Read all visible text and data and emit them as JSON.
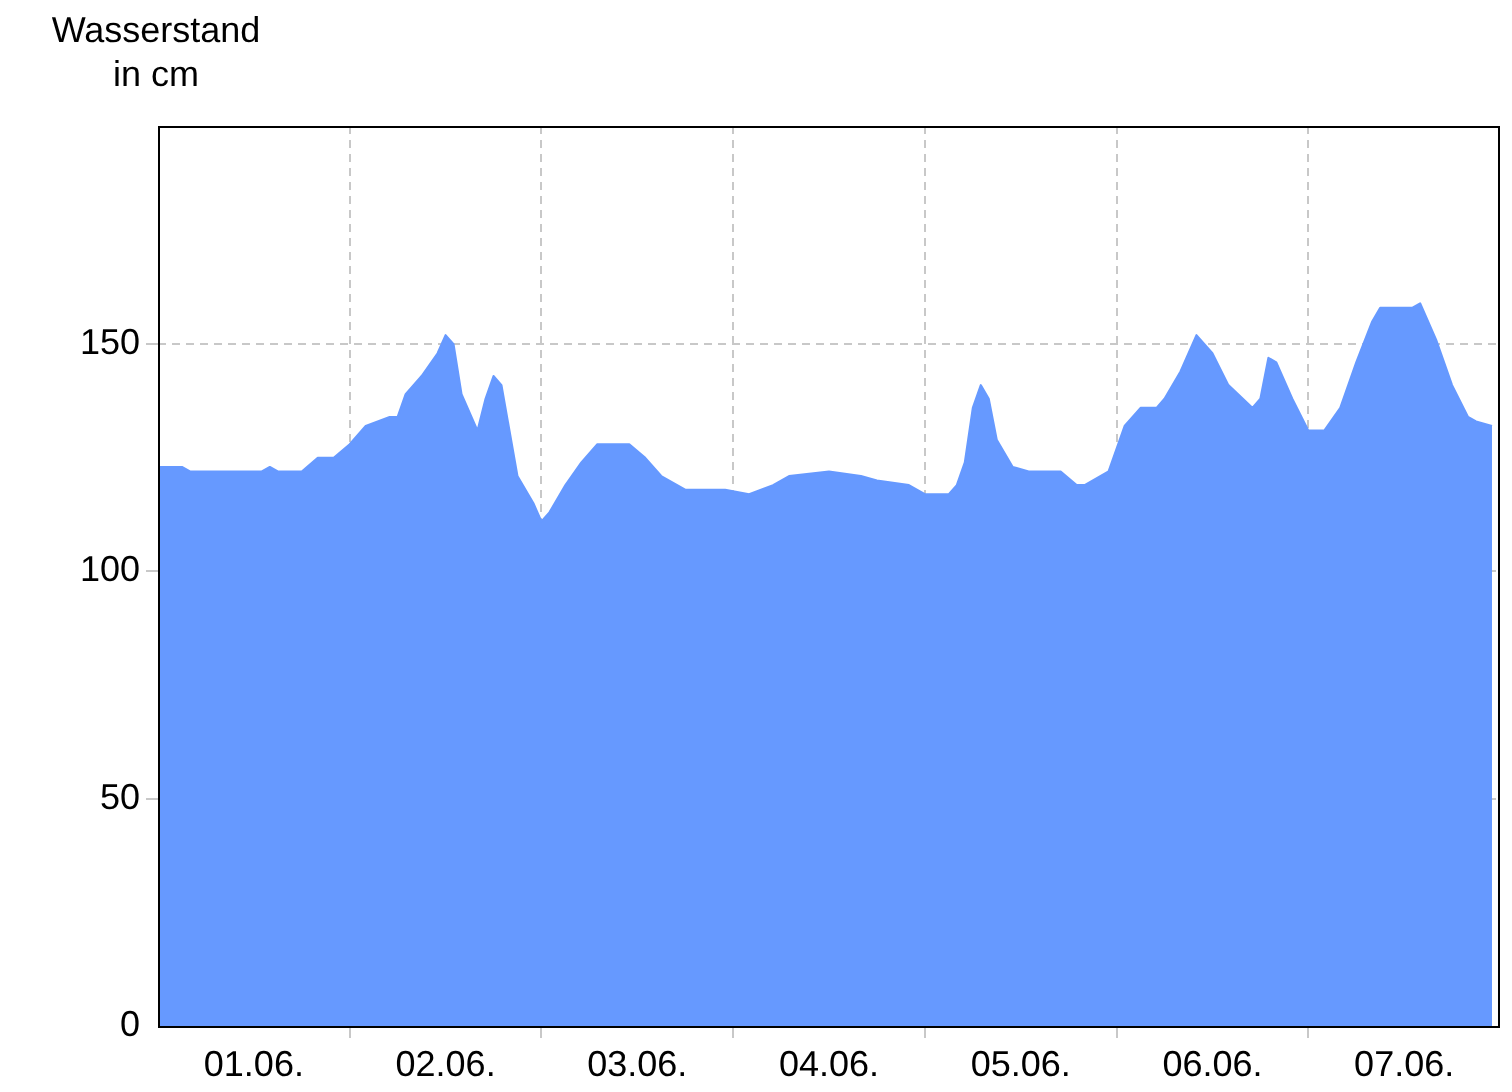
{
  "chart_data": {
    "type": "area",
    "ylabel": "Wasserstand in cm",
    "color": "#6699ff",
    "x": [
      "--06-01T00:00",
      "--06-01T03:00",
      "--06-01T04:00",
      "--06-01T13:00",
      "--06-01T14:00",
      "--06-01T15:00",
      "--06-01T18:00",
      "--06-01T20:00",
      "--06-01T22:00",
      "--06-02T00:00",
      "--06-02T02:00",
      "--06-02T05:00",
      "--06-02T06:00",
      "--06-02T07:00",
      "--06-02T09:00",
      "--06-02T11:00",
      "--06-02T12:00",
      "--06-02T13:00",
      "--06-02T14:00",
      "--06-02T16:00",
      "--06-02T17:00",
      "--06-02T18:00",
      "--06-02T19:00",
      "--06-02T20:00",
      "--06-02T21:00",
      "--06-02T23:00",
      "--06-03T00:00",
      "--06-03T01:00",
      "--06-03T03:00",
      "--06-03T05:00",
      "--06-03T07:00",
      "--06-03T11:00",
      "--06-03T13:00",
      "--06-03T15:00",
      "--06-03T18:00",
      "--06-03T23:00",
      "--06-04T02:00",
      "--06-04T05:00",
      "--06-04T07:00",
      "--06-04T12:00",
      "--06-04T16:00",
      "--06-04T18:00",
      "--06-04T22:00",
      "--06-05T00:00",
      "--06-05T03:00",
      "--06-05T04:00",
      "--06-05T05:00",
      "--06-05T06:00",
      "--06-05T07:00",
      "--06-05T08:00",
      "--06-05T09:00",
      "--06-05T11:00",
      "--06-05T13:00",
      "--06-05T17:00",
      "--06-05T19:00",
      "--06-05T20:00",
      "--06-05T23:00",
      "--06-06T01:00",
      "--06-06T03:00",
      "--06-06T05:00",
      "--06-06T06:00",
      "--06-06T08:00",
      "--06-06T10:00",
      "--06-06T12:00",
      "--06-06T14:00",
      "--06-06T17:00",
      "--06-06T18:00",
      "--06-06T19:00",
      "--06-06T20:00",
      "--06-06T22:00",
      "--06-07T00:00",
      "--06-07T02:00",
      "--06-07T04:00",
      "--06-07T06:00",
      "--06-07T08:00",
      "--06-07T09:00",
      "--06-07T13:00",
      "--06-07T14:00",
      "--06-07T16:00",
      "--06-07T18:00",
      "--06-07T20:00",
      "--06-07T21:00",
      "--06-07T23:00"
    ],
    "values": [
      123,
      123,
      122,
      122,
      123,
      122,
      122,
      125,
      125,
      128,
      132,
      134,
      134,
      139,
      143,
      148,
      152,
      150,
      139,
      131,
      138,
      143,
      141,
      131,
      121,
      115,
      111,
      113,
      119,
      124,
      128,
      128,
      125,
      121,
      118,
      118,
      117,
      119,
      121,
      122,
      121,
      120,
      119,
      117,
      117,
      119,
      124,
      136,
      141,
      138,
      129,
      123,
      122,
      122,
      119,
      119,
      122,
      132,
      136,
      136,
      138,
      144,
      152,
      148,
      141,
      136,
      138,
      147,
      146,
      138,
      131,
      131,
      136,
      146,
      155,
      158,
      158,
      159,
      151,
      141,
      134,
      133,
      132
    ],
    "xlim": [
      "--06-01T00:00",
      "--06-08T00:00"
    ],
    "xticks": [
      {
        "value": "--06-01T12:00",
        "label": "01.06."
      },
      {
        "value": "--06-02T00:00",
        "label": null
      },
      {
        "value": "--06-02T12:00",
        "label": "02.06."
      },
      {
        "value": "--06-03T00:00",
        "label": null
      },
      {
        "value": "--06-03T12:00",
        "label": "03.06."
      },
      {
        "value": "--06-04T00:00",
        "label": null
      },
      {
        "value": "--06-04T12:00",
        "label": "04.06."
      },
      {
        "value": "--06-05T00:00",
        "label": null
      },
      {
        "value": "--06-05T12:00",
        "label": "05.06."
      },
      {
        "value": "--06-06T00:00",
        "label": null
      },
      {
        "value": "--06-06T12:00",
        "label": "06.06."
      },
      {
        "value": "--06-07T00:00",
        "label": null
      },
      {
        "value": "--06-07T12:00",
        "label": "07.06."
      }
    ],
    "ylim": [
      0,
      198
    ],
    "yticks": [
      0,
      50,
      100,
      150
    ],
    "grid": true
  }
}
